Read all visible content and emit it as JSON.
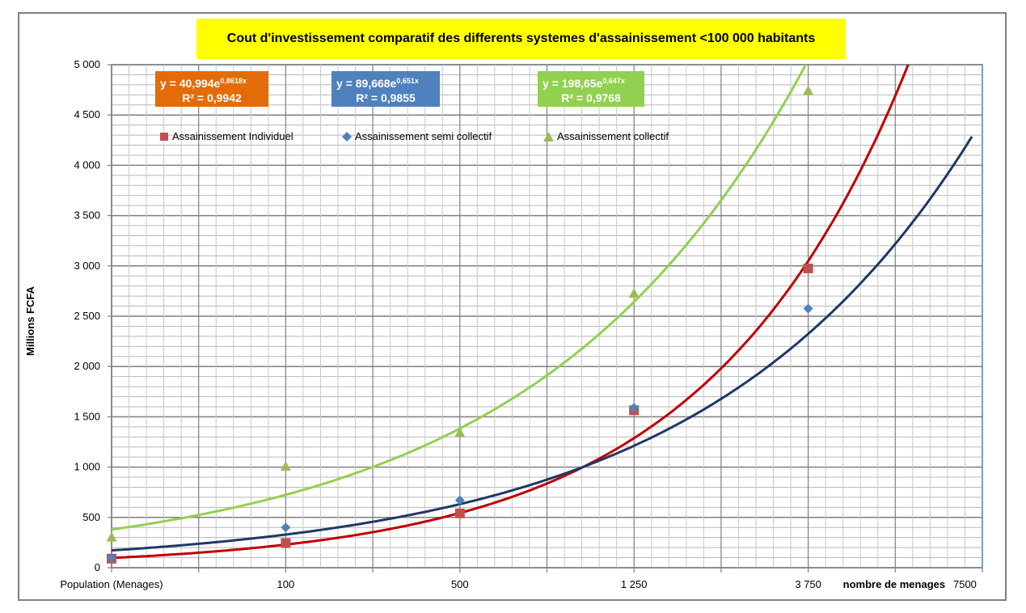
{
  "chart_data": {
    "type": "scatter",
    "title": "Cout d'investissement comparatif des differents systemes d'assainissement <100 000 habitants",
    "ylabel": "Millions FCFA",
    "xlabel": "nombre de menages",
    "x_first_label": "Population (Menages)",
    "x_tick_labels": [
      "100",
      "500",
      "1 250",
      "3 750",
      "7500"
    ],
    "y_tick_labels": [
      "0",
      "500",
      "1 000",
      "1 500",
      "2 000",
      "2 500",
      "3 000",
      "3 500",
      "4 000",
      "4 500",
      "5 000"
    ],
    "ylim": [
      0,
      5000
    ],
    "x_positions": [
      0,
      1,
      2,
      3,
      4
    ],
    "xlim": [
      0,
      5
    ],
    "legend_position": "top-left",
    "series": [
      {
        "name": "Assainissement Individuel",
        "marker": "square",
        "color": "#c0504d",
        "trend_color": "#c00000",
        "values": [
          90,
          245,
          540,
          1565,
          2975
        ],
        "trendline": {
          "type": "exponential",
          "a": 40.994,
          "b": 0.8618,
          "equation": "y = 40,994e",
          "exponent": "0,8618x",
          "r2": "R² = 0,9942"
        }
      },
      {
        "name": "Assainissement semi collectif",
        "marker": "diamond",
        "color": "#4f81bd",
        "trend_color": "#1f3864",
        "values": [
          95,
          400,
          670,
          1590,
          2575
        ],
        "trendline": {
          "type": "exponential",
          "a": 89.668,
          "b": 0.651,
          "equation": "y = 89,668e",
          "exponent": "0,651x",
          "r2": "R² = 0,9855"
        }
      },
      {
        "name": "Assainissement collectif",
        "marker": "triangle",
        "color": "#9bbb59",
        "trend_color": "#92d050",
        "values": [
          300,
          1005,
          1340,
          2725,
          4740
        ],
        "trendline": {
          "type": "exponential",
          "a": 198.65,
          "b": 0.647,
          "equation": "y = 198,65e",
          "exponent": "0,647x",
          "r2": "R² = 0,9768"
        }
      }
    ],
    "equation_box_colors": [
      "#e36c09",
      "#4f81bd",
      "#92d050"
    ],
    "grid": true
  }
}
